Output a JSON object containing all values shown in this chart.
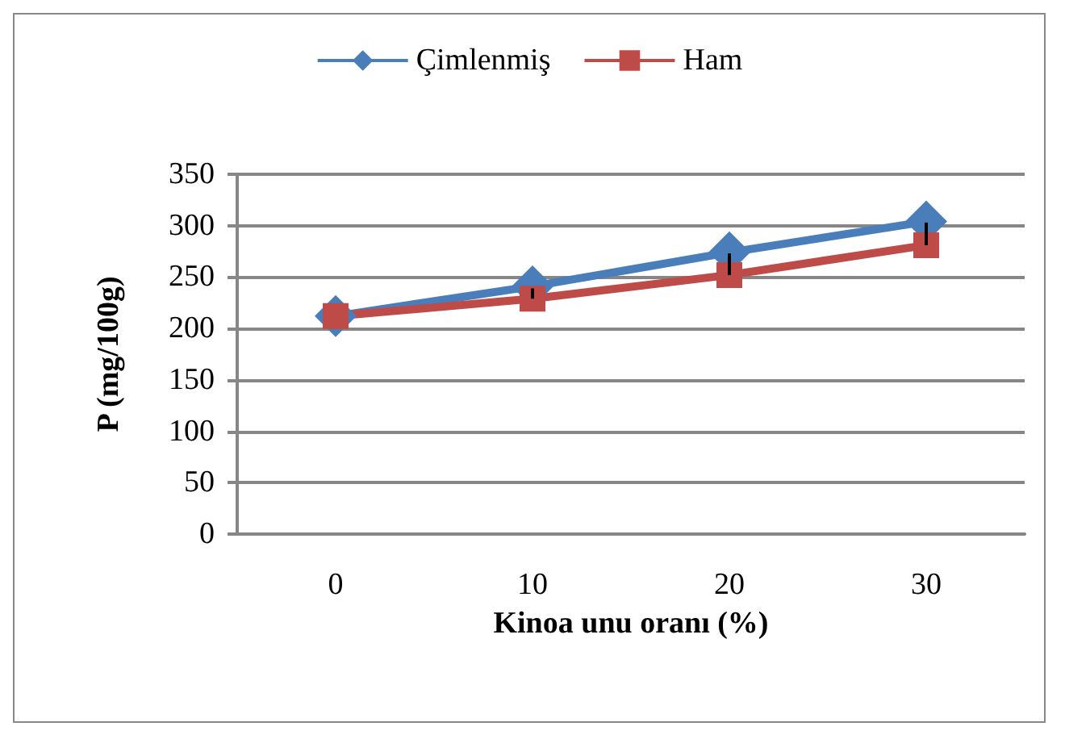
{
  "chart_data": {
    "type": "line",
    "xlabel": "Kinoa unu oranı (%)",
    "ylabel": "P (mg/100g)",
    "categories": [
      "0",
      "10",
      "20",
      "30"
    ],
    "series": [
      {
        "name": "Çimlenmiş",
        "color": "#4a7ebb",
        "marker": "diamond",
        "values": [
          212,
          241,
          274,
          304
        ]
      },
      {
        "name": "Ham",
        "color": "#be4b48",
        "marker": "square",
        "values": [
          212,
          229,
          252,
          281
        ],
        "errors": [
          null,
          [
            229,
            239
          ],
          [
            252,
            273
          ],
          [
            281,
            303
          ]
        ]
      }
    ],
    "ylim": [
      0,
      350
    ],
    "yticks": [
      0,
      50,
      100,
      150,
      200,
      250,
      300,
      350
    ],
    "grid": "y",
    "legend": "top"
  }
}
